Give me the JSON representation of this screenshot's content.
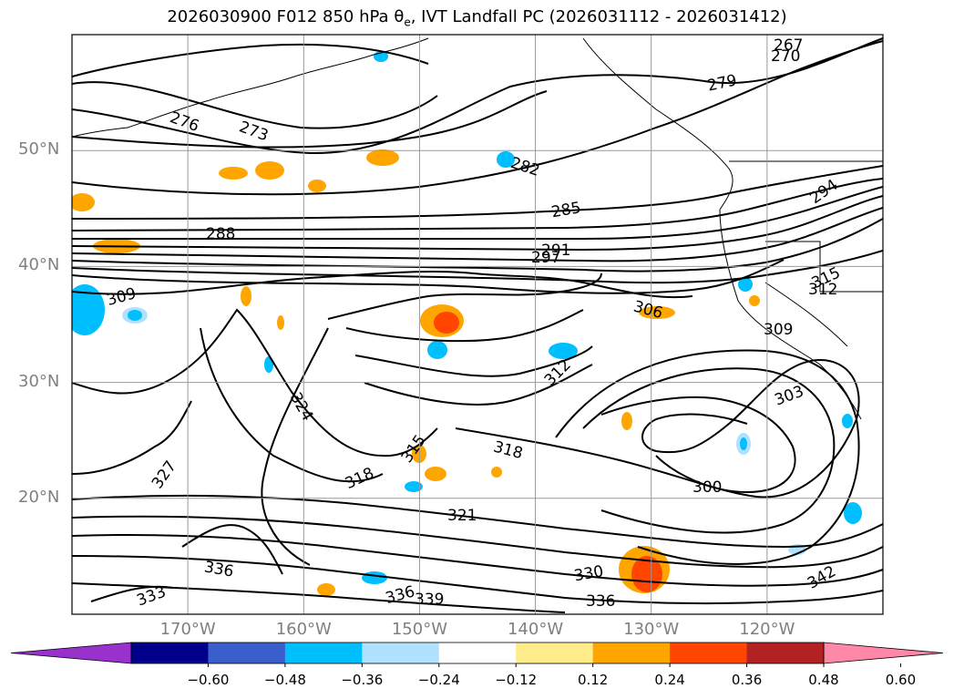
{
  "title": {
    "prefix": "2026030900 F012 850 hPa ",
    "symbol": "θ",
    "subscript": "e",
    "suffix": ", IVT Landfall PC (2026031112 - 2026031412)"
  },
  "map": {
    "projection": "cylindrical",
    "extent": {
      "lon_min": -180,
      "lon_max": -110,
      "lat_min": 10,
      "lat_max": 60
    },
    "gridlines": true,
    "lat_ticks": [
      {
        "value": 20,
        "label": "20°N"
      },
      {
        "value": 30,
        "label": "30°N"
      },
      {
        "value": 40,
        "label": "40°N"
      },
      {
        "value": 50,
        "label": "50°N"
      }
    ],
    "lon_ticks": [
      {
        "value": -170,
        "label": "170°W"
      },
      {
        "value": -160,
        "label": "160°W"
      },
      {
        "value": -150,
        "label": "150°W"
      },
      {
        "value": -140,
        "label": "140°W"
      },
      {
        "value": -130,
        "label": "130°W"
      },
      {
        "value": -120,
        "label": "120°W"
      }
    ],
    "theta_e_contour_labels": [
      "267",
      "270",
      "273",
      "276",
      "279",
      "282",
      "285",
      "288",
      "291",
      "294",
      "297",
      "300",
      "303",
      "306",
      "309",
      "312",
      "315",
      "318",
      "321",
      "324",
      "327",
      "330",
      "333",
      "336",
      "339",
      "342"
    ]
  },
  "colorbar": {
    "colors": [
      "#9932cc",
      "#00008b",
      "#3a5fcd",
      "#00bfff",
      "#b0e2ff",
      "#ffffff",
      "#ffec8b",
      "#ffa500",
      "#ff4500",
      "#b22222",
      "#ff88a8"
    ],
    "ticks": [
      "−0.60",
      "−0.48",
      "−0.36",
      "−0.24",
      "−0.12",
      "0.12",
      "0.24",
      "0.36",
      "0.48",
      "0.60"
    ],
    "extend": "both"
  }
}
